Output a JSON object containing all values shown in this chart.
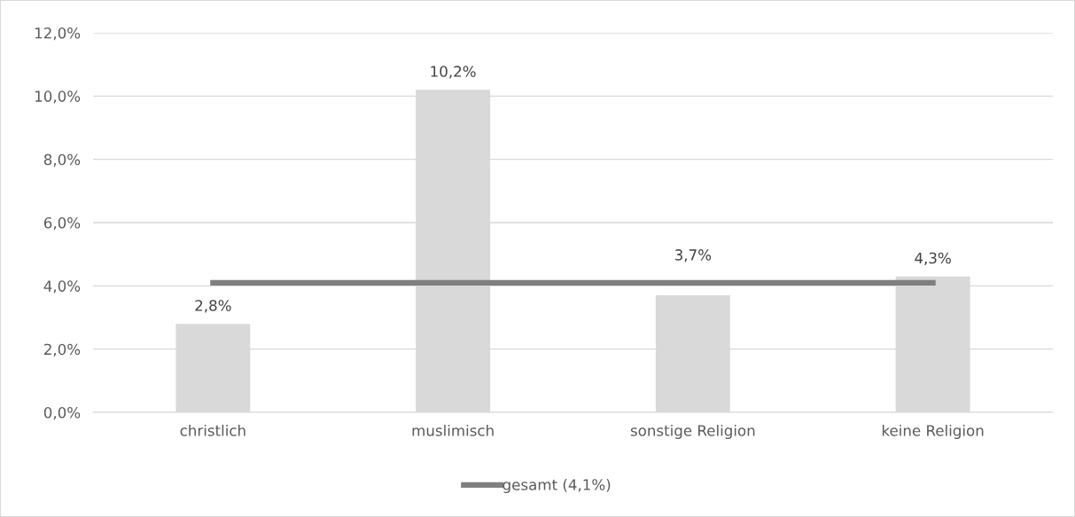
{
  "chart_data": {
    "type": "bar",
    "categories": [
      "christlich",
      "muslimisch",
      "sonstige Religion",
      "keine Religion"
    ],
    "series": [
      {
        "color": "#d9d9d9",
        "values": [
          2.8,
          10.2,
          3.7,
          4.3
        ],
        "value_labels": [
          "2,8%",
          "10,2%",
          "3,7%",
          "4,3%"
        ]
      },
      {
        "type": "line",
        "name": "gesamt (4,1%)",
        "color": "#7f7f7f",
        "values": [
          4.1,
          4.1,
          4.1,
          4.1
        ],
        "marker": "none",
        "line_style": "solid"
      }
    ],
    "ylim": [
      0,
      12
    ],
    "yticks": [
      {
        "value": 0,
        "label": "0,0%"
      },
      {
        "value": 2,
        "label": "2,0%"
      },
      {
        "value": 4,
        "label": "4,0%"
      },
      {
        "value": 6,
        "label": "6,0%"
      },
      {
        "value": 8,
        "label": "8,0%"
      },
      {
        "value": 10,
        "label": "10,0%"
      },
      {
        "value": 12,
        "label": "12,0%"
      }
    ],
    "grid": "y",
    "legend": "bottom"
  }
}
